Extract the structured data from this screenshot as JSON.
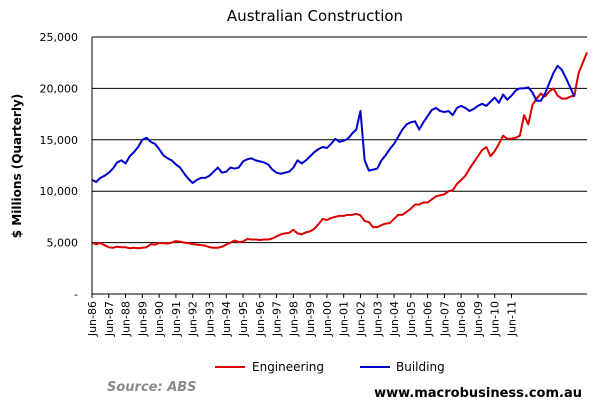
{
  "chart_data": {
    "type": "line",
    "title": "Australian Construction",
    "ylabel": "$ Millions (Quarterly)",
    "xlabel": "",
    "ylim": [
      0,
      25000
    ],
    "y_ticks": [
      {
        "value": 0,
        "label": "-"
      },
      {
        "value": 5000,
        "label": "5,000"
      },
      {
        "value": 10000,
        "label": "10,000"
      },
      {
        "value": 15000,
        "label": "15,000"
      },
      {
        "value": 20000,
        "label": "20,000"
      },
      {
        "value": 25000,
        "label": "25,000"
      }
    ],
    "x_tick_labels": [
      "Jun-86",
      "Jun-87",
      "Jun-88",
      "Jun-89",
      "Jun-90",
      "Jun-91",
      "Jun-92",
      "Jun-93",
      "Jun-94",
      "Jun-95",
      "Jun-96",
      "Jun-97",
      "Jun-98",
      "Jun-99",
      "Jun-00",
      "Jun-01",
      "Jun-02",
      "Jun-03",
      "Jun-04",
      "Jun-05",
      "Jun-06",
      "Jun-07",
      "Jun-08",
      "Jun-09",
      "Jun-10",
      "Jun-11"
    ],
    "grid": "horizontal",
    "legend_position": "bottom",
    "series": [
      {
        "name": "Engineering",
        "color": "#dd0000",
        "values": [
          5000,
          4850,
          4950,
          4750,
          4550,
          4500,
          4600,
          4550,
          4550,
          4450,
          4500,
          4450,
          4500,
          4550,
          4850,
          4800,
          4950,
          4950,
          4900,
          5000,
          5150,
          5100,
          5000,
          4950,
          4850,
          4800,
          4750,
          4700,
          4550,
          4500,
          4500,
          4600,
          4800,
          5000,
          5200,
          5050,
          5100,
          5350,
          5300,
          5300,
          5250,
          5300,
          5300,
          5400,
          5600,
          5800,
          5900,
          5950,
          6250,
          5900,
          5800,
          6000,
          6100,
          6350,
          6800,
          7300,
          7200,
          7400,
          7500,
          7600,
          7600,
          7700,
          7700,
          7800,
          7650,
          7100,
          7000,
          6500,
          6500,
          6700,
          6850,
          6900,
          7300,
          7700,
          7700,
          8000,
          8300,
          8700,
          8700,
          8900,
          8900,
          9200,
          9500,
          9600,
          9700,
          10000,
          10100,
          10700,
          11100,
          11500,
          12200,
          12800,
          13400,
          14000,
          14300,
          13400,
          13900,
          14600,
          15400,
          15100,
          15100,
          15200,
          15400,
          17400,
          16500,
          18400,
          19000,
          19500,
          19200,
          19700,
          20000,
          19300,
          19000,
          19000,
          19200,
          19300,
          21500,
          22500,
          23500
        ]
      },
      {
        "name": "Building",
        "color": "#0000cc",
        "values": [
          11100,
          10900,
          11300,
          11500,
          11800,
          12200,
          12800,
          13000,
          12700,
          13400,
          13800,
          14300,
          15000,
          15200,
          14800,
          14600,
          14100,
          13500,
          13200,
          13000,
          12600,
          12300,
          11700,
          11200,
          10800,
          11100,
          11300,
          11300,
          11500,
          11900,
          12300,
          11800,
          11900,
          12300,
          12200,
          12300,
          12900,
          13100,
          13200,
          13000,
          12900,
          12800,
          12600,
          12100,
          11800,
          11700,
          11800,
          11900,
          12300,
          13000,
          12700,
          13000,
          13400,
          13800,
          14100,
          14300,
          14200,
          14600,
          15100,
          14800,
          14900,
          15100,
          15600,
          16000,
          17800,
          13000,
          12000,
          12100,
          12200,
          13000,
          13500,
          14100,
          14600,
          15300,
          16000,
          16500,
          16700,
          16800,
          16000,
          16700,
          17300,
          17900,
          18100,
          17800,
          17700,
          17800,
          17400,
          18100,
          18300,
          18100,
          17800,
          18000,
          18300,
          18500,
          18300,
          18700,
          19100,
          18600,
          19400,
          18900,
          19300,
          19800,
          20000,
          20000,
          20100,
          19600,
          18800,
          18800,
          19500,
          20500,
          21500,
          22200,
          21800,
          21000,
          20100,
          19200
        ]
      }
    ]
  },
  "legend": {
    "items": [
      {
        "label": "Engineering",
        "color": "#dd0000"
      },
      {
        "label": "Building",
        "color": "#0000cc"
      }
    ]
  },
  "footer": {
    "source": "Source: ABS",
    "website": "www.macrobusiness.com.au"
  }
}
